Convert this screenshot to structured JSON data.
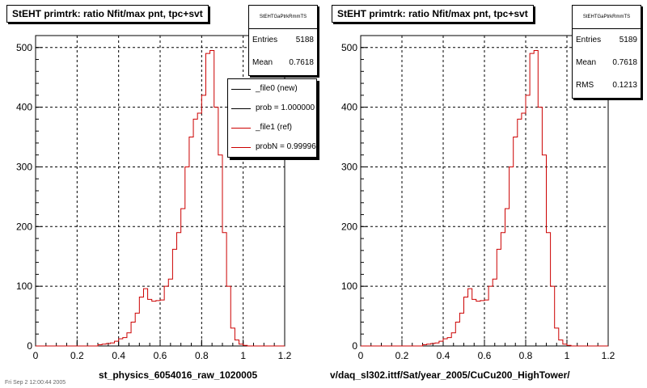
{
  "colors": {
    "ref": "#cc0000",
    "new": "#000000",
    "grid": "#000000",
    "background": "#ffffff"
  },
  "left": {
    "title": "StEHT primtrk: ratio Nfit/max pnt, tpc+svt",
    "stats": {
      "header": "StEHTGaPtrkRmmTS",
      "rows": [
        {
          "label": "Entries",
          "value": "5188"
        },
        {
          "label": "Mean",
          "value": "0.7618"
        }
      ]
    },
    "legend": [
      {
        "label": "_file0 (new)",
        "color": "#000000"
      },
      {
        "label": "prob = 1.000000",
        "color": "#000000"
      },
      {
        "label": "_file1 (ref)",
        "color": "#cc0000"
      },
      {
        "label": "probN = 0.999960",
        "color": "#cc0000"
      }
    ],
    "xtitle": "st_physics_6054016_raw_1020005"
  },
  "right": {
    "title": "StEHT primtrk: ratio Nfit/max pnt, tpc+svt",
    "stats": {
      "header": "StEHTGaPtrkRmmTS",
      "rows": [
        {
          "label": "Entries",
          "value": "5189"
        },
        {
          "label": "Mean",
          "value": "0.7618"
        },
        {
          "label": "RMS",
          "value": "0.1213"
        }
      ]
    },
    "xtitle": "v/daq_sl302.ittf/Sat/year_2005/CuCu200_HighTower/"
  },
  "footer": "Fri Sep  2 12:00:44 2005",
  "chart_data": [
    {
      "type": "step",
      "title": "StEHT primtrk: ratio Nfit/max pnt, tpc+svt",
      "xlabel": "st_physics_6054016_raw_1020005",
      "xlim": [
        0,
        1.2
      ],
      "ylim": [
        0,
        520
      ],
      "xticks": [
        "0",
        "0.2",
        "0.4",
        "0.6",
        "0.8",
        "1",
        "1.2"
      ],
      "yticks": [
        "0",
        "100",
        "200",
        "300",
        "400",
        "500"
      ],
      "grid": true,
      "bin_width": 0.02,
      "bin_start": 0.3,
      "values": [
        2,
        3,
        4,
        5,
        8,
        12,
        14,
        22,
        40,
        55,
        82,
        96,
        78,
        75,
        76,
        77,
        100,
        112,
        162,
        190,
        230,
        300,
        350,
        380,
        390,
        420,
        490,
        495,
        400,
        320,
        190,
        100,
        30,
        10,
        3,
        1
      ]
    },
    {
      "type": "step",
      "title": "StEHT primtrk: ratio Nfit/max pnt, tpc+svt",
      "xlabel": "v/daq_sl302.ittf/Sat/year_2005/CuCu200_HighTower/",
      "xlim": [
        0,
        1.2
      ],
      "ylim": [
        0,
        520
      ],
      "xticks": [
        "0",
        "0.2",
        "0.4",
        "0.6",
        "0.8",
        "1",
        "1.2"
      ],
      "yticks": [
        "0",
        "100",
        "200",
        "300",
        "400",
        "500"
      ],
      "grid": true,
      "bin_width": 0.02,
      "bin_start": 0.3,
      "values": [
        2,
        3,
        4,
        5,
        8,
        12,
        14,
        22,
        40,
        55,
        82,
        96,
        78,
        75,
        76,
        77,
        100,
        112,
        162,
        190,
        230,
        300,
        350,
        380,
        390,
        420,
        490,
        495,
        400,
        320,
        190,
        100,
        30,
        10,
        3,
        1
      ]
    }
  ]
}
